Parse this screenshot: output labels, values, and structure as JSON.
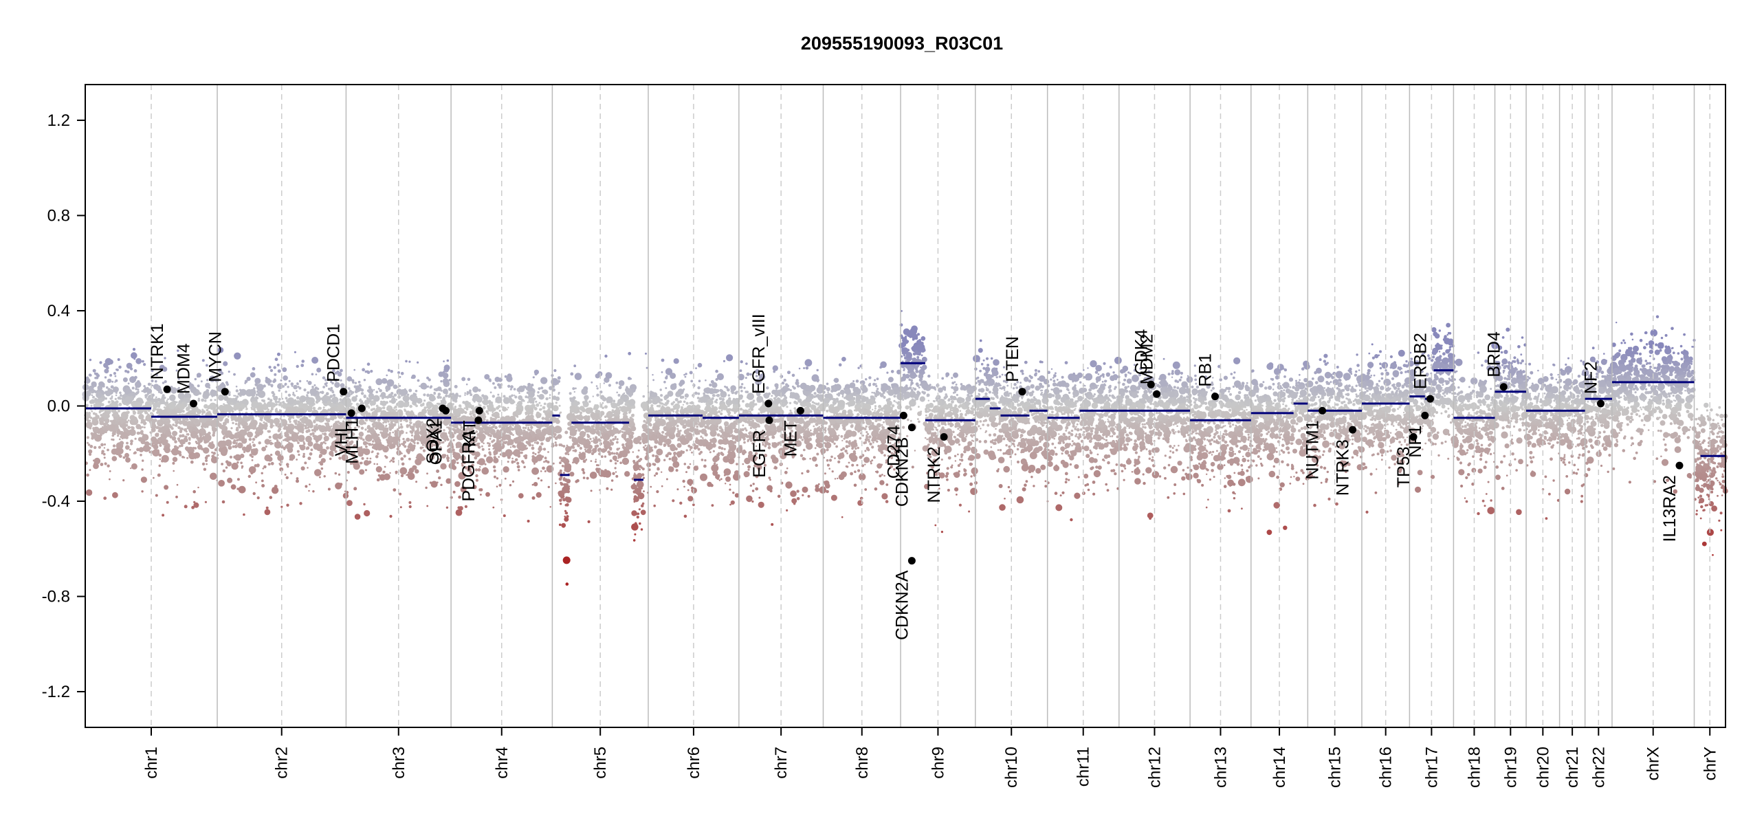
{
  "chart_data": {
    "type": "scatter",
    "title": "209555190093_R03C01",
    "xlabel": "",
    "ylabel": "",
    "ylim": [
      -1.35,
      1.35
    ],
    "yticks": [
      1.2,
      0.8,
      0.4,
      0.0,
      -0.4,
      -0.8,
      -1.2
    ],
    "ytick_labels": [
      "1.2",
      "0.8",
      "0.4",
      "0.0",
      "-0.4",
      "-0.8",
      "-1.2"
    ],
    "chromosomes": [
      {
        "name": "chr1",
        "len": 249
      },
      {
        "name": "chr2",
        "len": 243
      },
      {
        "name": "chr3",
        "len": 198
      },
      {
        "name": "chr4",
        "len": 191
      },
      {
        "name": "chr5",
        "len": 181
      },
      {
        "name": "chr6",
        "len": 171
      },
      {
        "name": "chr7",
        "len": 159
      },
      {
        "name": "chr8",
        "len": 146
      },
      {
        "name": "chr9",
        "len": 141
      },
      {
        "name": "chr10",
        "len": 136
      },
      {
        "name": "chr11",
        "len": 135
      },
      {
        "name": "chr12",
        "len": 134
      },
      {
        "name": "chr13",
        "len": 115
      },
      {
        "name": "chr14",
        "len": 107
      },
      {
        "name": "chr15",
        "len": 102
      },
      {
        "name": "chr16",
        "len": 90
      },
      {
        "name": "chr17",
        "len": 83
      },
      {
        "name": "chr18",
        "len": 78
      },
      {
        "name": "chr19",
        "len": 59
      },
      {
        "name": "chr20",
        "len": 63
      },
      {
        "name": "chr21",
        "len": 48
      },
      {
        "name": "chr22",
        "len": 51
      },
      {
        "name": "chrX",
        "len": 155
      },
      {
        "name": "chrY",
        "len": 59
      }
    ],
    "segments": [
      {
        "chr": "chr1",
        "start": 0,
        "end": 0.5,
        "value": -0.01
      },
      {
        "chr": "chr1",
        "start": 0.5,
        "end": 1,
        "value": -0.045
      },
      {
        "chr": "chr2",
        "start": 0,
        "end": 1,
        "value": -0.035
      },
      {
        "chr": "chr3",
        "start": 0,
        "end": 1,
        "value": -0.05
      },
      {
        "chr": "chr4",
        "start": 0,
        "end": 1,
        "value": -0.07
      },
      {
        "chr": "chr5",
        "start": 0,
        "end": 0.08,
        "value": -0.04
      },
      {
        "chr": "chr5",
        "start": 0.08,
        "end": 0.18,
        "value": -0.29
      },
      {
        "chr": "chr5",
        "start": 0.2,
        "end": 0.8,
        "value": -0.07
      },
      {
        "chr": "chr5",
        "start": 0.85,
        "end": 0.95,
        "value": -0.31
      },
      {
        "chr": "chr6",
        "start": 0,
        "end": 0.6,
        "value": -0.04
      },
      {
        "chr": "chr6",
        "start": 0.6,
        "end": 1,
        "value": -0.05
      },
      {
        "chr": "chr7",
        "start": 0,
        "end": 1,
        "value": -0.04
      },
      {
        "chr": "chr8",
        "start": 0,
        "end": 1,
        "value": -0.05
      },
      {
        "chr": "chr9",
        "start": 0,
        "end": 0.33,
        "value": 0.18
      },
      {
        "chr": "chr9",
        "start": 0.33,
        "end": 1,
        "value": -0.06
      },
      {
        "chr": "chr10",
        "start": 0,
        "end": 0.2,
        "value": 0.03
      },
      {
        "chr": "chr10",
        "start": 0.2,
        "end": 0.35,
        "value": -0.01
      },
      {
        "chr": "chr10",
        "start": 0.35,
        "end": 0.75,
        "value": -0.04
      },
      {
        "chr": "chr10",
        "start": 0.75,
        "end": 1,
        "value": -0.02
      },
      {
        "chr": "chr11",
        "start": 0,
        "end": 0.45,
        "value": -0.05
      },
      {
        "chr": "chr11",
        "start": 0.45,
        "end": 1,
        "value": -0.02
      },
      {
        "chr": "chr12",
        "start": 0,
        "end": 1,
        "value": -0.02
      },
      {
        "chr": "chr13",
        "start": 0,
        "end": 1,
        "value": -0.06
      },
      {
        "chr": "chr14",
        "start": 0,
        "end": 0.75,
        "value": -0.03
      },
      {
        "chr": "chr14",
        "start": 0.75,
        "end": 1,
        "value": 0.01
      },
      {
        "chr": "chr15",
        "start": 0,
        "end": 1,
        "value": -0.02
      },
      {
        "chr": "chr16",
        "start": 0,
        "end": 1,
        "value": 0.01
      },
      {
        "chr": "chr17",
        "start": 0,
        "end": 0.35,
        "value": 0.04
      },
      {
        "chr": "chr17",
        "start": 0.35,
        "end": 0.55,
        "value": 0.03
      },
      {
        "chr": "chr17",
        "start": 0.55,
        "end": 1,
        "value": 0.15
      },
      {
        "chr": "chr18",
        "start": 0,
        "end": 1,
        "value": -0.05
      },
      {
        "chr": "chr19",
        "start": 0,
        "end": 1,
        "value": 0.06
      },
      {
        "chr": "chr20",
        "start": 0,
        "end": 1,
        "value": -0.02
      },
      {
        "chr": "chr21",
        "start": 0,
        "end": 1,
        "value": -0.02
      },
      {
        "chr": "chr22",
        "start": 0,
        "end": 1,
        "value": 0.03
      },
      {
        "chr": "chrX",
        "start": 0,
        "end": 1,
        "value": 0.1
      },
      {
        "chr": "chrY",
        "start": 0.2,
        "end": 1,
        "value": -0.21
      }
    ],
    "genes": [
      {
        "name": "NTRK1",
        "chr": "chr1",
        "pos": 0.62,
        "value": 0.07,
        "label_side": "above"
      },
      {
        "name": "MDM4",
        "chr": "chr1",
        "pos": 0.82,
        "value": 0.01,
        "label_side": "above"
      },
      {
        "name": "MYCN",
        "chr": "chr2",
        "pos": 0.06,
        "value": 0.06,
        "label_side": "above"
      },
      {
        "name": "PDCD1",
        "chr": "chr2",
        "pos": 0.98,
        "value": 0.06,
        "label_side": "above"
      },
      {
        "name": "VHL",
        "chr": "chr3",
        "pos": 0.05,
        "value": -0.03,
        "label_side": "below"
      },
      {
        "name": "MLH1",
        "chr": "chr3",
        "pos": 0.15,
        "value": -0.01,
        "label_side": "below"
      },
      {
        "name": "SOX2",
        "chr": "chr3",
        "pos": 0.92,
        "value": -0.01,
        "label_side": "below"
      },
      {
        "name": "OPA1",
        "chr": "chr3",
        "pos": 0.95,
        "value": -0.02,
        "label_side": "below"
      },
      {
        "name": "PDGFRA",
        "chr": "chr4",
        "pos": 0.27,
        "value": -0.06,
        "label_side": "below"
      },
      {
        "name": "KIT",
        "chr": "chr4",
        "pos": 0.28,
        "value": -0.02,
        "label_side": "below"
      },
      {
        "name": "EGFR_vIII",
        "chr": "chr7",
        "pos": 0.35,
        "value": 0.01,
        "label_side": "above"
      },
      {
        "name": "EGFR",
        "chr": "chr7",
        "pos": 0.36,
        "value": -0.06,
        "label_side": "below"
      },
      {
        "name": "MET",
        "chr": "chr7",
        "pos": 0.73,
        "value": -0.02,
        "label_side": "below"
      },
      {
        "name": "CD274",
        "chr": "chr9",
        "pos": 0.04,
        "value": -0.04,
        "label_side": "below"
      },
      {
        "name": "CDKN2B",
        "chr": "chr9",
        "pos": 0.15,
        "value": -0.09,
        "label_side": "below"
      },
      {
        "name": "CDKN2A",
        "chr": "chr9",
        "pos": 0.15,
        "value": -0.65,
        "label_side": "below"
      },
      {
        "name": "NTRK2",
        "chr": "chr9",
        "pos": 0.58,
        "value": -0.13,
        "label_side": "below"
      },
      {
        "name": "PTEN",
        "chr": "chr10",
        "pos": 0.65,
        "value": 0.06,
        "label_side": "above"
      },
      {
        "name": "CDK4",
        "chr": "chr12",
        "pos": 0.45,
        "value": 0.09,
        "label_side": "above"
      },
      {
        "name": "MDM2",
        "chr": "chr12",
        "pos": 0.53,
        "value": 0.05,
        "label_side": "above"
      },
      {
        "name": "RB1",
        "chr": "chr13",
        "pos": 0.41,
        "value": 0.04,
        "label_side": "above"
      },
      {
        "name": "NUTM1",
        "chr": "chr15",
        "pos": 0.27,
        "value": -0.02,
        "label_side": "below"
      },
      {
        "name": "NTRK3",
        "chr": "chr15",
        "pos": 0.83,
        "value": -0.1,
        "label_side": "below"
      },
      {
        "name": "TP53",
        "chr": "chr17",
        "pos": 0.09,
        "value": -0.13,
        "label_side": "below"
      },
      {
        "name": "NF1",
        "chr": "chr17",
        "pos": 0.35,
        "value": -0.04,
        "label_side": "below"
      },
      {
        "name": "ERBB2",
        "chr": "chr17",
        "pos": 0.47,
        "value": 0.03,
        "label_side": "above"
      },
      {
        "name": "BRD4",
        "chr": "chr19",
        "pos": 0.28,
        "value": 0.08,
        "label_side": "above"
      },
      {
        "name": "NF2",
        "chr": "chr22",
        "pos": 0.58,
        "value": 0.01,
        "label_side": "above"
      },
      {
        "name": "IL13RA2",
        "chr": "chrX",
        "pos": 0.82,
        "value": -0.25,
        "label_side": "below"
      }
    ],
    "colors": {
      "gain": "#8888bb",
      "neutral": "#c8c8c8",
      "loss": "#b08080",
      "loss_strong": "#aa2222",
      "segment": "#00007a",
      "axis": "#000000",
      "chrom_line": "#bbbbbb"
    }
  }
}
